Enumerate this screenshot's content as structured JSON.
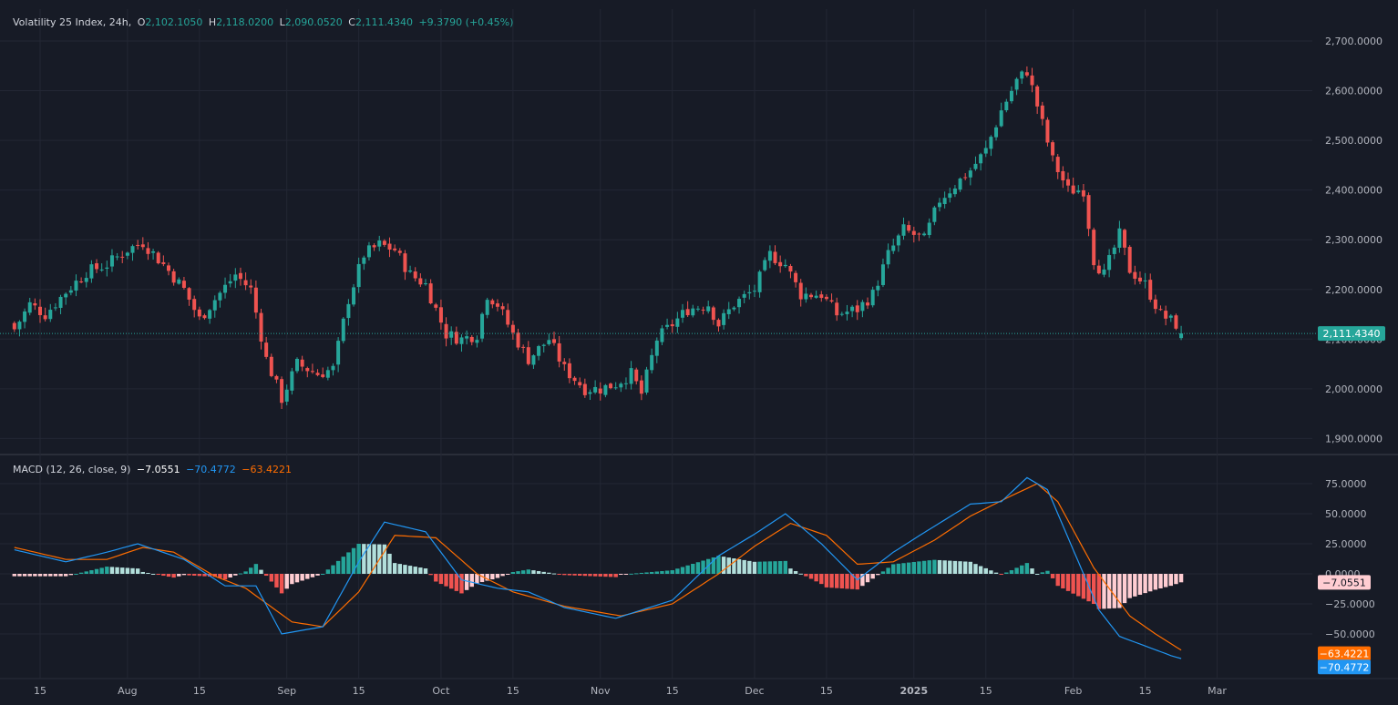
{
  "instrument": {
    "title": "Volatility 25 Index, 24h,",
    "open_label": "O",
    "open": "2,102.1050",
    "high_label": "H",
    "high": "2,118.0200",
    "low_label": "L",
    "low": "2,090.0520",
    "close_label": "C",
    "close": "2,111.4340",
    "change": "+9.3790 (+0.45%)"
  },
  "macd_legend": {
    "title": "MACD (12, 26, close, 9)",
    "histogram": "−7.0551",
    "macd": "−70.4772",
    "signal": "−63.4221"
  },
  "price_axis": {
    "ticks": [
      "2,700.0000",
      "2,600.0000",
      "2,500.0000",
      "2,400.0000",
      "2,300.0000",
      "2,200.0000",
      "2,100.0000",
      "2,000.0000",
      "1,900.0000"
    ],
    "last_price_badge": "2,111.4340"
  },
  "macd_axis": {
    "ticks": [
      "75.0000",
      "50.0000",
      "25.0000",
      "0.0000",
      "−25.0000",
      "−50.0000"
    ],
    "histogram_badge": "−7.0551",
    "signal_badge": "−63.4221",
    "macd_badge": "−70.4772"
  },
  "time_axis": {
    "labels": [
      "15",
      "Aug",
      "15",
      "Sep",
      "15",
      "Oct",
      "15",
      "Nov",
      "15",
      "Dec",
      "15",
      "2025",
      "15",
      "Feb",
      "15",
      "Mar"
    ]
  },
  "colors": {
    "up": "#26a69a",
    "down": "#ef5350",
    "hist_up_strong": "#26a69a",
    "hist_up_weak": "#b2dfdb",
    "hist_down_strong": "#ef5350",
    "hist_down_weak": "#ffcdd2",
    "macd_line": "#2962ff",
    "signal_line": "#ff6d00",
    "background": "#171b26",
    "grid": "#232734"
  },
  "chart_data": {
    "type": "candlestick",
    "title": "Volatility 25 Index, 24h",
    "ylim": [
      1880,
      2720
    ],
    "close_anchors": [
      [
        "07-10",
        2120
      ],
      [
        "07-13",
        2170
      ],
      [
        "07-16",
        2150
      ],
      [
        "07-20",
        2195
      ],
      [
        "07-24",
        2235
      ],
      [
        "07-28",
        2250
      ],
      [
        "08-01",
        2280
      ],
      [
        "08-04",
        2295
      ],
      [
        "08-08",
        2250
      ],
      [
        "08-12",
        2200
      ],
      [
        "08-15",
        2140
      ],
      [
        "08-18",
        2180
      ],
      [
        "08-22",
        2230
      ],
      [
        "08-25",
        2200
      ],
      [
        "08-28",
        2060
      ],
      [
        "08-31",
        1980
      ],
      [
        "09-03",
        2050
      ],
      [
        "09-07",
        2030
      ],
      [
        "09-10",
        2040
      ],
      [
        "09-13",
        2180
      ],
      [
        "09-16",
        2270
      ],
      [
        "09-19",
        2290
      ],
      [
        "09-22",
        2280
      ],
      [
        "09-25",
        2230
      ],
      [
        "09-28",
        2210
      ],
      [
        "10-02",
        2110
      ],
      [
        "10-05",
        2100
      ],
      [
        "10-08",
        2110
      ],
      [
        "10-10",
        2190
      ],
      [
        "10-12",
        2170
      ],
      [
        "10-15",
        2110
      ],
      [
        "10-18",
        2060
      ],
      [
        "10-22",
        2100
      ],
      [
        "10-25",
        2040
      ],
      [
        "10-29",
        2000
      ],
      [
        "11-01",
        2000
      ],
      [
        "11-04",
        2010
      ],
      [
        "11-07",
        2030
      ],
      [
        "11-09",
        1990
      ],
      [
        "11-12",
        2100
      ],
      [
        "11-15",
        2130
      ],
      [
        "11-18",
        2160
      ],
      [
        "11-22",
        2170
      ],
      [
        "11-24",
        2130
      ],
      [
        "11-27",
        2170
      ],
      [
        "12-01",
        2200
      ],
      [
        "12-04",
        2270
      ],
      [
        "12-07",
        2250
      ],
      [
        "12-10",
        2190
      ],
      [
        "12-14",
        2190
      ],
      [
        "12-17",
        2150
      ],
      [
        "12-21",
        2160
      ],
      [
        "12-24",
        2190
      ],
      [
        "12-27",
        2270
      ],
      [
        "12-30",
        2320
      ],
      [
        "01-03",
        2300
      ],
      [
        "01-06",
        2380
      ],
      [
        "01-09",
        2410
      ],
      [
        "01-12",
        2440
      ],
      [
        "01-15",
        2480
      ],
      [
        "01-18",
        2560
      ],
      [
        "01-21",
        2620
      ],
      [
        "01-23",
        2640
      ],
      [
        "01-25",
        2570
      ],
      [
        "01-28",
        2460
      ],
      [
        "01-31",
        2400
      ],
      [
        "02-03",
        2400
      ],
      [
        "02-05",
        2260
      ],
      [
        "02-07",
        2230
      ],
      [
        "02-10",
        2310
      ],
      [
        "02-12",
        2240
      ],
      [
        "02-15",
        2210
      ],
      [
        "02-18",
        2150
      ],
      [
        "02-21",
        2130
      ],
      [
        "02-22",
        2111.434
      ]
    ],
    "macd_anchors": [
      [
        "07-10",
        20
      ],
      [
        "07-20",
        10
      ],
      [
        "07-28",
        18
      ],
      [
        "08-03",
        25
      ],
      [
        "08-12",
        12
      ],
      [
        "08-20",
        -10
      ],
      [
        "08-26",
        -10
      ],
      [
        "08-31",
        -50
      ],
      [
        "09-08",
        -44
      ],
      [
        "09-15",
        10
      ],
      [
        "09-20",
        43
      ],
      [
        "09-28",
        35
      ],
      [
        "10-05",
        -5
      ],
      [
        "10-12",
        -12
      ],
      [
        "10-18",
        -15
      ],
      [
        "10-25",
        -28
      ],
      [
        "11-04",
        -37
      ],
      [
        "11-15",
        -22
      ],
      [
        "11-24",
        15
      ],
      [
        "12-01",
        33
      ],
      [
        "12-07",
        50
      ],
      [
        "12-14",
        25
      ],
      [
        "12-21",
        -5
      ],
      [
        "12-28",
        18
      ],
      [
        "01-04",
        37
      ],
      [
        "01-12",
        58
      ],
      [
        "01-18",
        60
      ],
      [
        "01-23",
        80
      ],
      [
        "01-27",
        70
      ],
      [
        "02-02",
        10
      ],
      [
        "02-06",
        -30
      ],
      [
        "02-10",
        -52
      ],
      [
        "02-15",
        -60
      ],
      [
        "02-20",
        -68
      ],
      [
        "02-22",
        -70.4772
      ]
    ],
    "signal_anchors": [
      [
        "07-10",
        22
      ],
      [
        "07-20",
        12
      ],
      [
        "07-28",
        12
      ],
      [
        "08-04",
        22
      ],
      [
        "08-10",
        18
      ],
      [
        "08-18",
        -2
      ],
      [
        "08-24",
        -12
      ],
      [
        "09-02",
        -40
      ],
      [
        "09-08",
        -44
      ],
      [
        "09-15",
        -15
      ],
      [
        "09-22",
        32
      ],
      [
        "09-30",
        30
      ],
      [
        "10-08",
        0
      ],
      [
        "10-15",
        -15
      ],
      [
        "10-25",
        -27
      ],
      [
        "11-05",
        -35
      ],
      [
        "11-15",
        -25
      ],
      [
        "11-24",
        0
      ],
      [
        "12-01",
        23
      ],
      [
        "12-08",
        42
      ],
      [
        "12-15",
        32
      ],
      [
        "12-21",
        8
      ],
      [
        "12-28",
        10
      ],
      [
        "01-05",
        28
      ],
      [
        "01-12",
        48
      ],
      [
        "01-20",
        65
      ],
      [
        "01-25",
        75
      ],
      [
        "01-29",
        60
      ],
      [
        "02-05",
        5
      ],
      [
        "02-12",
        -35
      ],
      [
        "02-17",
        -50
      ],
      [
        "02-22",
        -63.4221
      ]
    ],
    "histogram_last": -7.0551,
    "macd_last": -70.4772,
    "signal_last": -63.4221,
    "macd_ylim": [
      -75,
      85
    ]
  }
}
